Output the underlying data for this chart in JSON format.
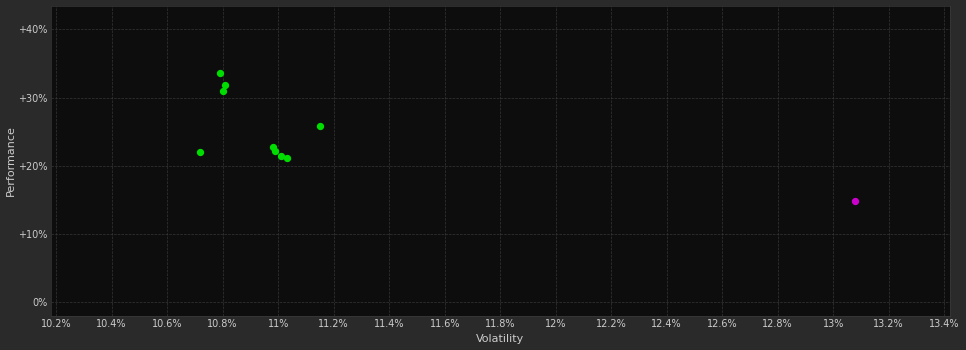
{
  "background_color": "#2a2a2a",
  "plot_bg_color": "#0d0d0d",
  "grid_color": "#3a3a3a",
  "text_color": "#cccccc",
  "xlabel": "Volatility",
  "ylabel": "Performance",
  "xlim": [
    0.1018,
    0.1342
  ],
  "ylim": [
    -0.02,
    0.435
  ],
  "xtick_values": [
    0.102,
    0.104,
    0.106,
    0.108,
    0.11,
    0.112,
    0.114,
    0.116,
    0.118,
    0.12,
    0.122,
    0.124,
    0.126,
    0.128,
    0.13,
    0.132,
    0.134
  ],
  "xtick_labels": [
    "10.2%",
    "10.4%",
    "10.6%",
    "10.8%",
    "11%",
    "11.2%",
    "11.4%",
    "11.6%",
    "11.8%",
    "12%",
    "12.2%",
    "12.4%",
    "12.6%",
    "12.8%",
    "13%",
    "13.2%",
    "13.4%"
  ],
  "yticks": [
    0.0,
    0.1,
    0.2,
    0.3,
    0.4
  ],
  "ytick_labels": [
    "0%",
    "+10%",
    "+20%",
    "+30%",
    "+40%"
  ],
  "green_points": [
    [
      0.1079,
      0.336
    ],
    [
      0.1081,
      0.318
    ],
    [
      0.108,
      0.31
    ],
    [
      0.1072,
      0.221
    ],
    [
      0.1098,
      0.228
    ],
    [
      0.1099,
      0.222
    ],
    [
      0.1101,
      0.215
    ],
    [
      0.1103,
      0.212
    ],
    [
      0.1115,
      0.258
    ]
  ],
  "magenta_points": [
    [
      0.1308,
      0.148
    ]
  ],
  "green_color": "#00dd00",
  "magenta_color": "#cc00cc",
  "point_size": 18
}
